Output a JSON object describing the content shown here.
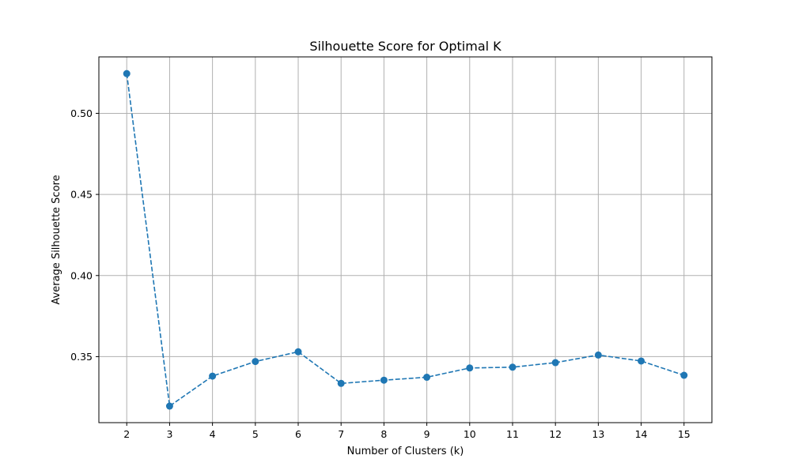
{
  "chart_data": {
    "type": "line",
    "title": "Silhouette Score for Optimal K",
    "xlabel": "Number of Clusters (k)",
    "ylabel": "Average Silhouette Score",
    "x": [
      2,
      3,
      4,
      5,
      6,
      7,
      8,
      9,
      10,
      11,
      12,
      13,
      14,
      15
    ],
    "series": [
      {
        "values": [
          0.5245,
          0.3195,
          0.338,
          0.347,
          0.353,
          0.3335,
          0.3355,
          0.3373,
          0.343,
          0.3435,
          0.3463,
          0.351,
          0.3473,
          0.3385
        ],
        "color": "#1f77b4",
        "line_style": "dashed",
        "marker": "circle"
      }
    ],
    "x_ticks": [
      "2",
      "3",
      "4",
      "5",
      "6",
      "7",
      "8",
      "9",
      "10",
      "11",
      "12",
      "13",
      "14",
      "15"
    ],
    "y_ticks": [
      0.35,
      0.4,
      0.45,
      0.5
    ],
    "y_tick_labels": [
      "0.35",
      "0.40",
      "0.45",
      "0.50"
    ],
    "xlim": [
      1.35,
      15.65
    ],
    "ylim": [
      0.3093,
      0.5348
    ],
    "grid": true,
    "legend": "none"
  }
}
